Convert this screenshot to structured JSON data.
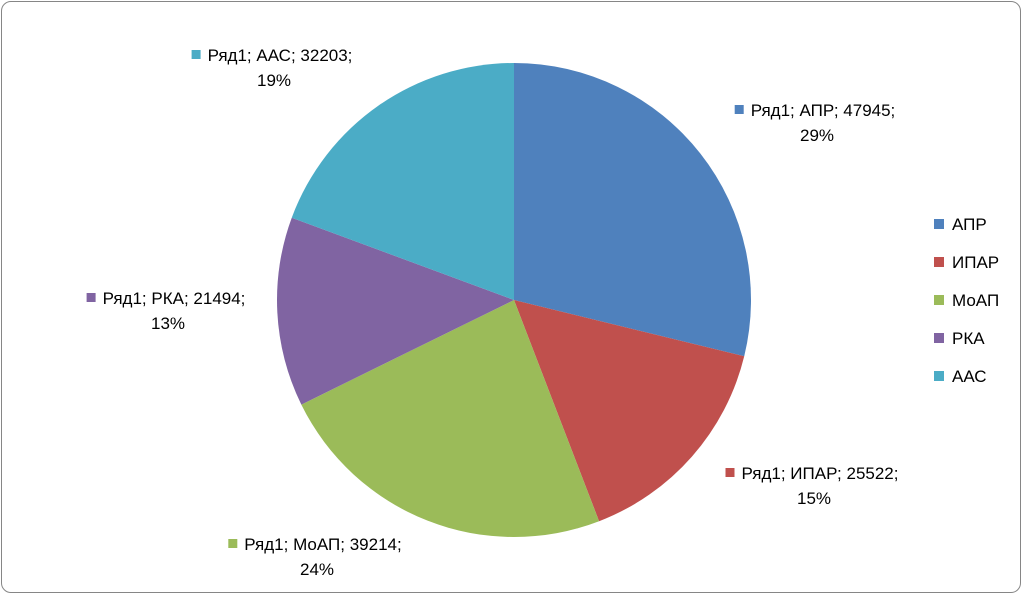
{
  "chart_data": {
    "type": "pie",
    "series_name": "Ряд1",
    "categories": [
      "АПР",
      "ИПАР",
      "МоАП",
      "РКА",
      "ААС"
    ],
    "values": [
      47945,
      25522,
      39214,
      21494,
      32203
    ],
    "percents": [
      "29%",
      "15%",
      "24%",
      "13%",
      "19%"
    ],
    "colors": [
      "#4f81bd",
      "#c0504d",
      "#9bbb59",
      "#8064a2",
      "#4bacc6"
    ],
    "label_separator": "; ",
    "legend_position": "right",
    "title": ""
  }
}
